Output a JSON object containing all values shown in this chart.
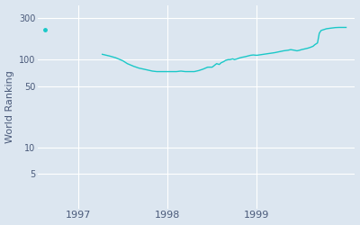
{
  "ylabel": "World Ranking",
  "bg_color": "#dce6f0",
  "line_color": "#1ac8c8",
  "line_width": 1.0,
  "yticks": [
    5,
    10,
    50,
    100,
    300
  ],
  "ytick_labels": [
    "5",
    "10",
    "50",
    "100",
    "300"
  ],
  "xtick_positions": [
    1997.0,
    1998.0,
    1999.0
  ],
  "xtick_labels": [
    "1997",
    "1998",
    "1999"
  ],
  "xlim_start": 1996.55,
  "xlim_end": 2000.1,
  "ylim_log_min": 2.0,
  "ylim_log_max": 420,
  "isolated_point": [
    1996.63,
    220
  ],
  "data_points": [
    [
      1997.27,
      115
    ],
    [
      1997.35,
      110
    ],
    [
      1997.42,
      105
    ],
    [
      1997.5,
      97
    ],
    [
      1997.55,
      90
    ],
    [
      1997.62,
      84
    ],
    [
      1997.68,
      80
    ],
    [
      1997.73,
      78
    ],
    [
      1997.78,
      76
    ],
    [
      1997.83,
      74
    ],
    [
      1997.88,
      73
    ],
    [
      1997.92,
      73
    ],
    [
      1997.97,
      73
    ],
    [
      1998.0,
      73
    ],
    [
      1998.05,
      73
    ],
    [
      1998.1,
      73
    ],
    [
      1998.15,
      74
    ],
    [
      1998.2,
      73
    ],
    [
      1998.25,
      73
    ],
    [
      1998.3,
      73
    ],
    [
      1998.35,
      75
    ],
    [
      1998.4,
      78
    ],
    [
      1998.45,
      82
    ],
    [
      1998.5,
      82
    ],
    [
      1998.52,
      85
    ],
    [
      1998.55,
      90
    ],
    [
      1998.58,
      88
    ],
    [
      1998.6,
      92
    ],
    [
      1998.63,
      95
    ],
    [
      1998.65,
      98
    ],
    [
      1998.68,
      100
    ],
    [
      1998.7,
      100
    ],
    [
      1998.73,
      102
    ],
    [
      1998.75,
      100
    ],
    [
      1998.78,
      102
    ],
    [
      1998.8,
      104
    ],
    [
      1998.83,
      106
    ],
    [
      1998.87,
      108
    ],
    [
      1998.9,
      110
    ],
    [
      1998.93,
      112
    ],
    [
      1998.96,
      113
    ],
    [
      1999.0,
      112
    ],
    [
      1999.05,
      114
    ],
    [
      1999.1,
      116
    ],
    [
      1999.15,
      118
    ],
    [
      1999.2,
      120
    ],
    [
      1999.25,
      123
    ],
    [
      1999.3,
      126
    ],
    [
      1999.35,
      128
    ],
    [
      1999.38,
      130
    ],
    [
      1999.42,
      128
    ],
    [
      1999.45,
      126
    ],
    [
      1999.48,
      128
    ],
    [
      1999.5,
      130
    ],
    [
      1999.53,
      132
    ],
    [
      1999.57,
      135
    ],
    [
      1999.6,
      138
    ],
    [
      1999.63,
      142
    ],
    [
      1999.65,
      148
    ],
    [
      1999.68,
      155
    ],
    [
      1999.7,
      200
    ],
    [
      1999.72,
      215
    ],
    [
      1999.75,
      220
    ],
    [
      1999.78,
      225
    ],
    [
      1999.82,
      228
    ],
    [
      1999.85,
      230
    ],
    [
      1999.88,
      232
    ],
    [
      1999.92,
      233
    ],
    [
      1999.95,
      233
    ],
    [
      2000.0,
      233
    ]
  ]
}
